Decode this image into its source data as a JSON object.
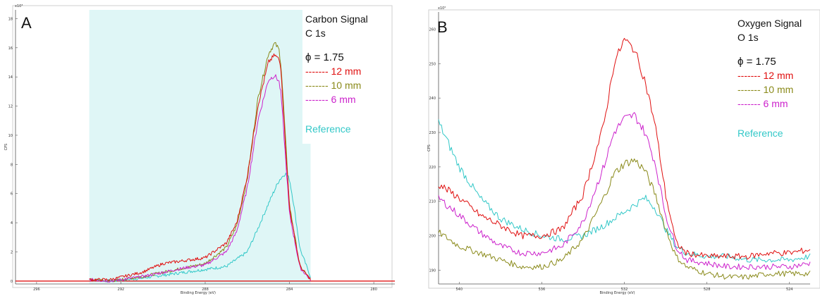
{
  "chart_data": [
    {
      "type": "line",
      "panel_label": "A",
      "title_lines": [
        "Carbon Signal",
        "C 1s"
      ],
      "phi_label": "ϕ = 1.75",
      "xlabel": "Binding Energy (eV)",
      "ylabel": "CPS",
      "exponent_label": "x10³",
      "xlim": [
        297,
        279
      ],
      "ylim": [
        -0.2,
        18.6
      ],
      "x_ticks": [
        296,
        292,
        288,
        284,
        280
      ],
      "y_ticks": [
        0,
        2,
        4,
        6,
        8,
        10,
        12,
        14,
        16,
        18
      ],
      "highlight_band": [
        293.5,
        283.0
      ],
      "highlight_color": "#dff6f6",
      "baseline_color": "#dd0000",
      "series": [
        {
          "name": "12 mm",
          "legend_label": "------- 12 mm",
          "color": "#e01010",
          "peak": 15.5,
          "x": [
            293.5,
            292.5,
            291.0,
            290.0,
            289.0,
            288.0,
            287.0,
            286.5,
            286.0,
            285.5,
            285.0,
            284.7,
            284.5,
            284.4,
            284.3,
            284.0,
            283.5,
            283.0
          ],
          "y": [
            0.1,
            0.1,
            0.6,
            1.2,
            1.4,
            1.6,
            2.6,
            4.0,
            7.2,
            12.0,
            15.0,
            15.5,
            15.2,
            14.6,
            12.0,
            5.0,
            1.0,
            0.1
          ]
        },
        {
          "name": "10 mm",
          "legend_label": "------- 10 mm",
          "color": "#8a8a1a",
          "peak": 16.3,
          "x": [
            293.5,
            292.5,
            291.0,
            290.0,
            289.0,
            288.0,
            287.0,
            286.5,
            286.0,
            285.5,
            285.0,
            284.7,
            284.5,
            284.4,
            284.3,
            284.0,
            283.5,
            283.0
          ],
          "y": [
            0.1,
            0.0,
            0.3,
            0.6,
            0.9,
            1.2,
            2.3,
            3.8,
            7.0,
            12.5,
            15.6,
            16.3,
            15.9,
            14.8,
            12.5,
            5.2,
            1.0,
            0.1
          ]
        },
        {
          "name": "6 mm",
          "legend_label": "------- 6 mm",
          "color": "#cc22cc",
          "peak": 14.1,
          "x": [
            293.5,
            292.5,
            291.0,
            290.0,
            289.0,
            288.0,
            287.0,
            286.5,
            286.0,
            285.5,
            285.0,
            284.7,
            284.5,
            284.4,
            284.3,
            284.0,
            283.5,
            283.0
          ],
          "y": [
            0.1,
            0.0,
            0.3,
            0.6,
            0.9,
            1.1,
            2.0,
            3.4,
            6.4,
            11.0,
            13.8,
            14.1,
            13.7,
            12.8,
            10.8,
            4.6,
            0.9,
            0.1
          ]
        },
        {
          "name": "Reference",
          "legend_label": "Reference",
          "color": "#33c8c8",
          "peak": 7.4,
          "x": [
            293.5,
            292.5,
            291.0,
            290.0,
            289.0,
            288.0,
            287.0,
            286.0,
            285.5,
            285.0,
            284.5,
            284.2,
            284.0,
            283.8,
            283.5,
            283.0
          ],
          "y": [
            0.1,
            0.0,
            0.2,
            0.4,
            0.6,
            0.8,
            1.0,
            2.0,
            3.6,
            5.3,
            6.9,
            7.4,
            7.0,
            5.3,
            2.2,
            0.3
          ]
        }
      ]
    },
    {
      "type": "line",
      "panel_label": "B",
      "title_lines": [
        "Oxygen Signal",
        "O 1s"
      ],
      "phi_label": "ϕ = 1.75",
      "xlabel": "Binding Energy (eV)",
      "ylabel": "CPS",
      "exponent_label": "x10²",
      "xlim": [
        541,
        523
      ],
      "ylim": [
        186,
        265
      ],
      "x_ticks": [
        540,
        536,
        532,
        528,
        524
      ],
      "y_ticks": [
        190,
        200,
        210,
        220,
        230,
        240,
        250,
        260
      ],
      "series": [
        {
          "name": "12 mm",
          "legend_label": "------- 12 mm",
          "color": "#e01010",
          "peak": 257,
          "x": [
            541,
            540,
            539,
            538,
            537,
            536,
            535,
            534,
            533,
            532.5,
            532,
            531.5,
            531,
            530.5,
            530,
            529.5,
            529,
            528,
            527,
            526,
            525,
            524,
            523
          ],
          "y": [
            215,
            211,
            206,
            203,
            200,
            200,
            202,
            212,
            232,
            250,
            257,
            254,
            245,
            232,
            212,
            198,
            195,
            194,
            194,
            194,
            195,
            195,
            196
          ]
        },
        {
          "name": "10 mm",
          "legend_label": "------- 10 mm",
          "color": "#8a8a1a",
          "peak": 222,
          "x": [
            541,
            540,
            539,
            538,
            537,
            536,
            535,
            534,
            533,
            532.5,
            532,
            531.5,
            531,
            530.5,
            530,
            529.5,
            529,
            528,
            527,
            526,
            525,
            524,
            523
          ],
          "y": [
            201,
            197,
            195,
            193,
            191,
            191,
            193,
            199,
            211,
            218,
            221,
            222,
            219,
            212,
            202,
            194,
            191,
            189,
            188,
            188,
            189,
            189,
            189
          ]
        },
        {
          "name": "6 mm",
          "legend_label": "------- 6 mm",
          "color": "#cc22cc",
          "peak": 235,
          "x": [
            541,
            540,
            539,
            538,
            537,
            536,
            535,
            534,
            533,
            532.5,
            532,
            531.5,
            531,
            530.5,
            530,
            529.5,
            529,
            528,
            527,
            526,
            525,
            524,
            523
          ],
          "y": [
            211,
            206,
            201,
            197,
            195,
            195,
            197,
            204,
            220,
            230,
            234,
            235,
            230,
            221,
            206,
            197,
            193,
            192,
            191,
            191,
            191,
            191,
            192
          ]
        },
        {
          "name": "Reference",
          "legend_label": "Reference",
          "color": "#33c8c8",
          "peak": 211,
          "x": [
            541,
            540,
            539,
            538,
            537,
            536,
            535,
            534,
            533,
            532,
            531.5,
            531,
            530.5,
            530,
            529.5,
            529,
            528,
            527,
            526,
            525,
            524,
            523
          ],
          "y": [
            233,
            220,
            211,
            205,
            202,
            200,
            199,
            200,
            203,
            207,
            209,
            211,
            208,
            202,
            197,
            195,
            194,
            194,
            193,
            193,
            193,
            194
          ]
        }
      ]
    }
  ]
}
